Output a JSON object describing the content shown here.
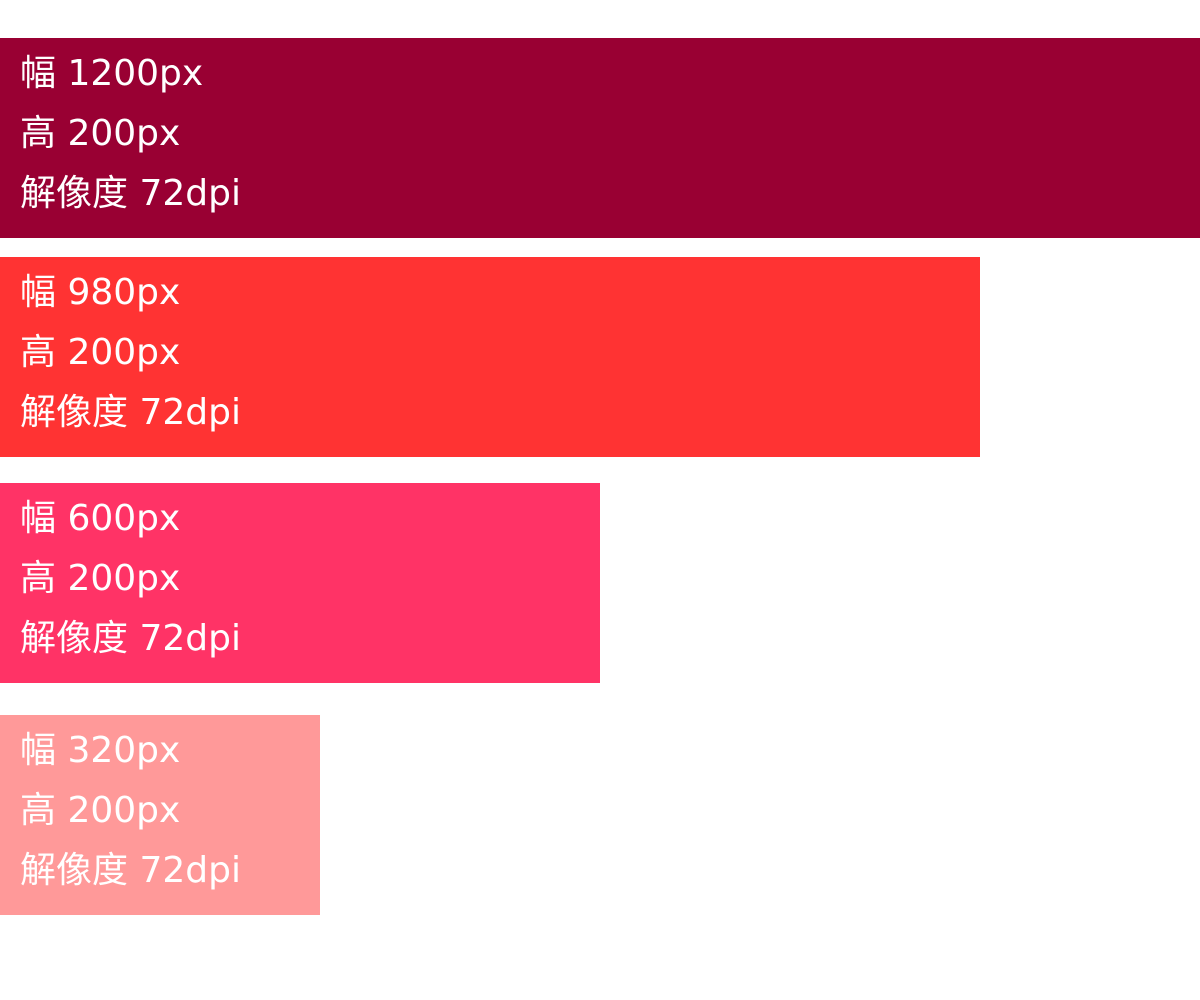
{
  "blocks": [
    {
      "color": "#990033",
      "width_label": "幅 1200px",
      "height_label": "高 200px",
      "resolution_label": "解像度 72dpi"
    },
    {
      "color": "#FF3333",
      "width_label": "幅 980px",
      "height_label": "高 200px",
      "resolution_label": "解像度 72dpi"
    },
    {
      "color": "#FF3366",
      "width_label": "幅 600px",
      "height_label": "高 200px",
      "resolution_label": "解像度 72dpi"
    },
    {
      "color": "#FF9999",
      "width_label": "幅 320px",
      "height_label": "高 200px",
      "resolution_label": "解像度 72dpi"
    }
  ]
}
